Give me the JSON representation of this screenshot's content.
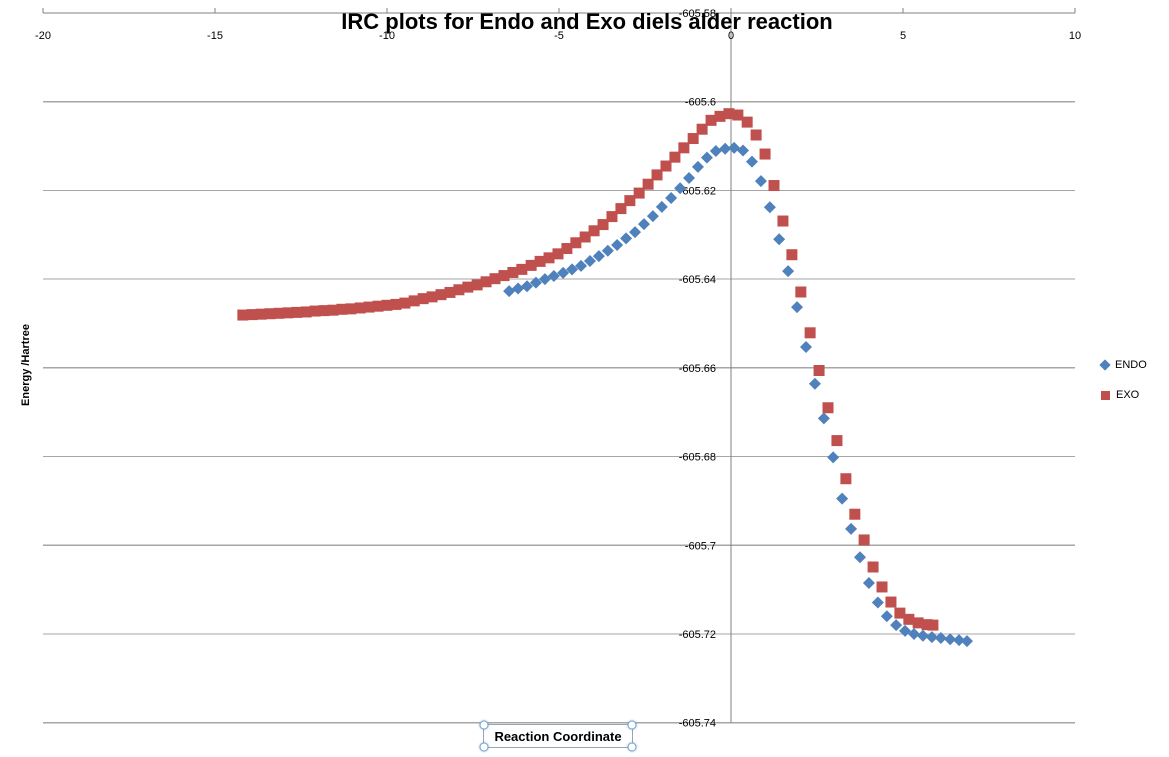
{
  "title": "IRC plots for Endo and Exo diels alder reaction",
  "y_axis": {
    "label": "Energy /Hartree"
  },
  "x_axis": {
    "textbox_label": "Reaction Coordinate"
  },
  "legend": {
    "items": [
      {
        "label": "ENDO",
        "marker": "diamond",
        "color": "#4F81BD"
      },
      {
        "label": "EXO",
        "marker": "square",
        "color": "#C0504D"
      }
    ]
  },
  "colors": {
    "endo": "#4F81BD",
    "exo": "#C0504D",
    "gridline": "#A6A6A6",
    "axis": "#808080",
    "text": "#000000"
  },
  "chart_data": {
    "type": "scatter",
    "title": "IRC plots for Endo and Exo diels alder reaction",
    "xlabel": "Reaction Coordinate",
    "ylabel": "Energy /Hartree",
    "xlim": [
      -20,
      10
    ],
    "ylim": [
      -605.74,
      -605.58
    ],
    "x_ticks": [
      -20,
      -15,
      -10,
      -5,
      0,
      5,
      10
    ],
    "y_ticks": [
      -605.58,
      -605.6,
      -605.62,
      -605.64,
      -605.66,
      -605.68,
      -605.7,
      -605.72,
      -605.74
    ],
    "grid": true,
    "legend_position": "right",
    "axis_position": {
      "x_axis": "top",
      "y_axis_crossing_x": 0
    },
    "series": [
      {
        "name": "ENDO",
        "marker": "diamond",
        "color": "#4F81BD",
        "points": [
          [
            -6.45,
            -605.6427
          ],
          [
            -6.19,
            -605.6421
          ],
          [
            -5.93,
            -605.6416
          ],
          [
            -5.67,
            -605.6408
          ],
          [
            -5.41,
            -605.64
          ],
          [
            -5.15,
            -605.6393
          ],
          [
            -4.88,
            -605.6386
          ],
          [
            -4.62,
            -605.6378
          ],
          [
            -4.36,
            -605.637
          ],
          [
            -4.1,
            -605.6359
          ],
          [
            -3.84,
            -605.6348
          ],
          [
            -3.58,
            -605.6336
          ],
          [
            -3.31,
            -605.6323
          ],
          [
            -3.05,
            -605.6308
          ],
          [
            -2.79,
            -605.6294
          ],
          [
            -2.53,
            -605.6276
          ],
          [
            -2.27,
            -605.6258
          ],
          [
            -2.01,
            -605.6237
          ],
          [
            -1.74,
            -605.6217
          ],
          [
            -1.48,
            -605.6195
          ],
          [
            -1.22,
            -605.6172
          ],
          [
            -0.96,
            -605.6147
          ],
          [
            -0.7,
            -605.6126
          ],
          [
            -0.44,
            -605.6111
          ],
          [
            -0.17,
            -605.6106
          ],
          [
            0.09,
            -605.6104
          ],
          [
            0.35,
            -605.611
          ],
          [
            0.61,
            -605.6135
          ],
          [
            0.87,
            -605.6179
          ],
          [
            1.13,
            -605.6238
          ],
          [
            1.4,
            -605.631
          ],
          [
            1.66,
            -605.6382
          ],
          [
            1.92,
            -605.6463
          ],
          [
            2.18,
            -605.6553
          ],
          [
            2.44,
            -605.6636
          ],
          [
            2.7,
            -605.6714
          ],
          [
            2.97,
            -605.6802
          ],
          [
            3.23,
            -605.6895
          ],
          [
            3.49,
            -605.6963
          ],
          [
            3.75,
            -605.7027
          ],
          [
            4.01,
            -605.7085
          ],
          [
            4.27,
            -605.7129
          ],
          [
            4.53,
            -605.716
          ],
          [
            4.8,
            -605.718
          ],
          [
            5.06,
            -605.7193
          ],
          [
            5.32,
            -605.72
          ],
          [
            5.58,
            -605.7204
          ],
          [
            5.84,
            -605.7207
          ],
          [
            6.1,
            -605.7209
          ],
          [
            6.37,
            -605.7212
          ],
          [
            6.63,
            -605.7214
          ],
          [
            6.86,
            -605.7216
          ]
        ]
      },
      {
        "name": "EXO",
        "marker": "square",
        "color": "#C0504D",
        "points": [
          [
            -14.19,
            -605.6481
          ],
          [
            -13.92,
            -605.648
          ],
          [
            -13.66,
            -605.6479
          ],
          [
            -13.4,
            -605.6478
          ],
          [
            -13.14,
            -605.6477
          ],
          [
            -12.88,
            -605.6476
          ],
          [
            -12.62,
            -605.6475
          ],
          [
            -12.35,
            -605.6474
          ],
          [
            -12.09,
            -605.6472
          ],
          [
            -11.83,
            -605.6471
          ],
          [
            -11.57,
            -605.647
          ],
          [
            -11.31,
            -605.6468
          ],
          [
            -11.05,
            -605.6467
          ],
          [
            -10.78,
            -605.6465
          ],
          [
            -10.52,
            -605.6463
          ],
          [
            -10.26,
            -605.6461
          ],
          [
            -10.0,
            -605.6459
          ],
          [
            -9.74,
            -605.6457
          ],
          [
            -9.48,
            -605.6454
          ],
          [
            -9.21,
            -605.6449
          ],
          [
            -8.95,
            -605.6444
          ],
          [
            -8.69,
            -605.644
          ],
          [
            -8.43,
            -605.6435
          ],
          [
            -8.17,
            -605.643
          ],
          [
            -7.91,
            -605.6424
          ],
          [
            -7.65,
            -605.6418
          ],
          [
            -7.38,
            -605.6413
          ],
          [
            -7.12,
            -605.6406
          ],
          [
            -6.86,
            -605.6399
          ],
          [
            -6.6,
            -605.6392
          ],
          [
            -6.34,
            -605.6385
          ],
          [
            -6.08,
            -605.6378
          ],
          [
            -5.81,
            -605.6369
          ],
          [
            -5.55,
            -605.636
          ],
          [
            -5.29,
            -605.6352
          ],
          [
            -5.03,
            -605.6343
          ],
          [
            -4.77,
            -605.6331
          ],
          [
            -4.51,
            -605.6318
          ],
          [
            -4.24,
            -605.6305
          ],
          [
            -3.98,
            -605.6291
          ],
          [
            -3.72,
            -605.6277
          ],
          [
            -3.46,
            -605.6259
          ],
          [
            -3.2,
            -605.6241
          ],
          [
            -2.94,
            -605.6223
          ],
          [
            -2.67,
            -605.6206
          ],
          [
            -2.41,
            -605.6186
          ],
          [
            -2.15,
            -605.6165
          ],
          [
            -1.89,
            -605.6145
          ],
          [
            -1.63,
            -605.6125
          ],
          [
            -1.37,
            -605.6104
          ],
          [
            -1.1,
            -605.6083
          ],
          [
            -0.84,
            -605.6062
          ],
          [
            -0.58,
            -605.6042
          ],
          [
            -0.32,
            -605.6033
          ],
          [
            -0.06,
            -605.6027
          ],
          [
            0.2,
            -605.603
          ],
          [
            0.47,
            -605.6046
          ],
          [
            0.73,
            -605.6075
          ],
          [
            0.99,
            -605.6118
          ],
          [
            1.25,
            -605.6189
          ],
          [
            1.51,
            -605.6269
          ],
          [
            1.77,
            -605.6345
          ],
          [
            2.03,
            -605.6429
          ],
          [
            2.3,
            -605.6521
          ],
          [
            2.56,
            -605.6606
          ],
          [
            2.82,
            -605.669
          ],
          [
            3.08,
            -605.6764
          ],
          [
            3.34,
            -605.685
          ],
          [
            3.6,
            -605.693
          ],
          [
            3.87,
            -605.6988
          ],
          [
            4.13,
            -605.7049
          ],
          [
            4.39,
            -605.7094
          ],
          [
            4.65,
            -605.7128
          ],
          [
            4.91,
            -605.7153
          ],
          [
            5.17,
            -605.7167
          ],
          [
            5.44,
            -605.7175
          ],
          [
            5.7,
            -605.7179
          ],
          [
            5.87,
            -605.718
          ]
        ]
      }
    ]
  }
}
